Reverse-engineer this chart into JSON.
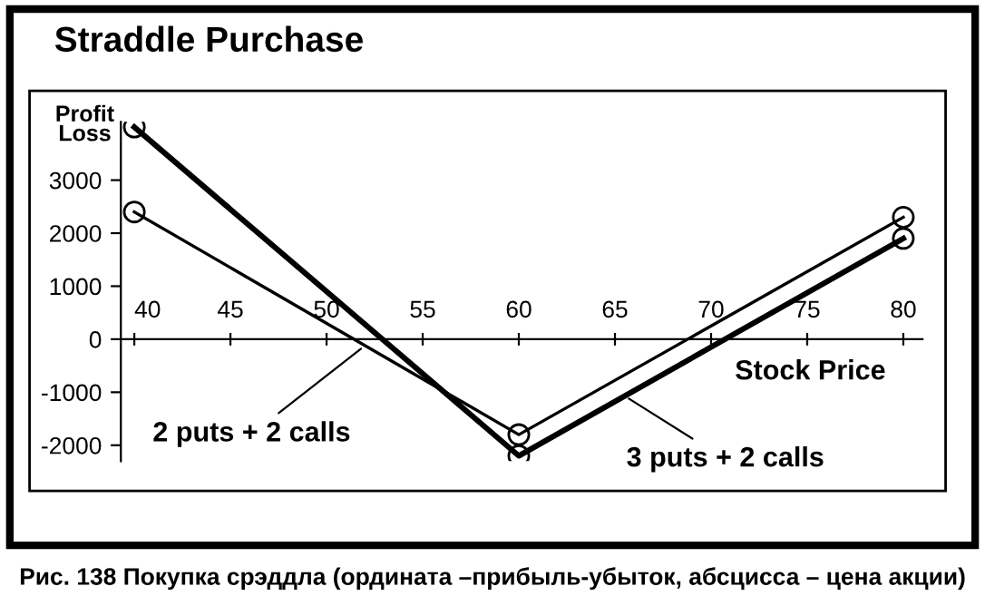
{
  "chart_data": {
    "type": "line",
    "title": "Straddle Purchase",
    "xlabel": "Stock Price",
    "ylabel": "Profit\nLoss",
    "x": [
      40,
      60,
      80
    ],
    "series": [
      {
        "color": "#000000",
        "values": [
          2400,
          -1800,
          2300
        ]
      },
      {
        "color": "#000000",
        "values": [
          4000,
          -2200,
          1900
        ]
      }
    ],
    "xlim": [
      39.3,
      81
    ],
    "ylim": [
      -2300,
      4100
    ],
    "xticks": [
      40,
      45,
      50,
      55,
      60,
      65,
      70,
      75,
      80
    ],
    "yticks": [
      -2000,
      -1000,
      0,
      1000,
      2000,
      3000
    ],
    "marker": "circle",
    "line_style": "solid",
    "grid": false,
    "legend": false,
    "annotations": [
      {
        "text": "2 puts + 2 calls",
        "x": 52,
        "y": -120
      },
      {
        "text": "3 puts + 2 calls",
        "x": 65.5,
        "y": -1070
      },
      "Рис. 138 Покупка срэддла (ордината –прибыль-убыток, абсцисса – цена акции)"
    ]
  }
}
